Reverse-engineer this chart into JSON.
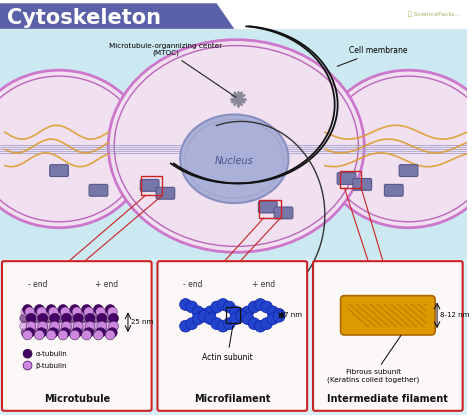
{
  "title": "Cytoskeleton",
  "title_bg": "#5b61a8",
  "title_color": "#ffffff",
  "bg_top": "#cce8f0",
  "bg_bottom": "#ddeef5",
  "cell_fill": "#f0e0f0",
  "cell_border": "#cc77cc",
  "cell_border2": "#bb66bb",
  "nucleus_fill": "#aab0d8",
  "nucleus_border": "#8890c0",
  "box_border": "#cc2222",
  "box_fill": "#ffffff",
  "box_bg": "#f0f8f0",
  "alpha_tubulin_color": "#440066",
  "beta_tubulin_color": "#cc88dd",
  "actin_color": "#2244cc",
  "filament_color": "#dd9900",
  "filament_stripe": "#bb7700",
  "mt_label": "Microtubule",
  "mf_label": "Microfilament",
  "if_label": "Intermediate filament",
  "barrel_fill": "#7777aa",
  "barrel_edge": "#555588",
  "orange_wave": "#dd9922",
  "blue_mt_line": "#9999cc",
  "black_mt": "#111111",
  "mtoc_color": "#888899",
  "labels": {
    "mtoc": "Microtubule-organnizing center\n(MTOC)",
    "cell_membrane": "Cell membrane",
    "nucleus": "Nucleus",
    "minus_end": "- end",
    "plus_end": "+ end",
    "nm25": "25 nm",
    "nm7": "7 nm",
    "nm812": "8-12 nm",
    "alpha": "α-tubulin",
    "beta": "β-tubulin",
    "actin_subunit": "Actin subunit",
    "fibrous": "Fibrous subunit\n(Keratins coiled together)"
  }
}
